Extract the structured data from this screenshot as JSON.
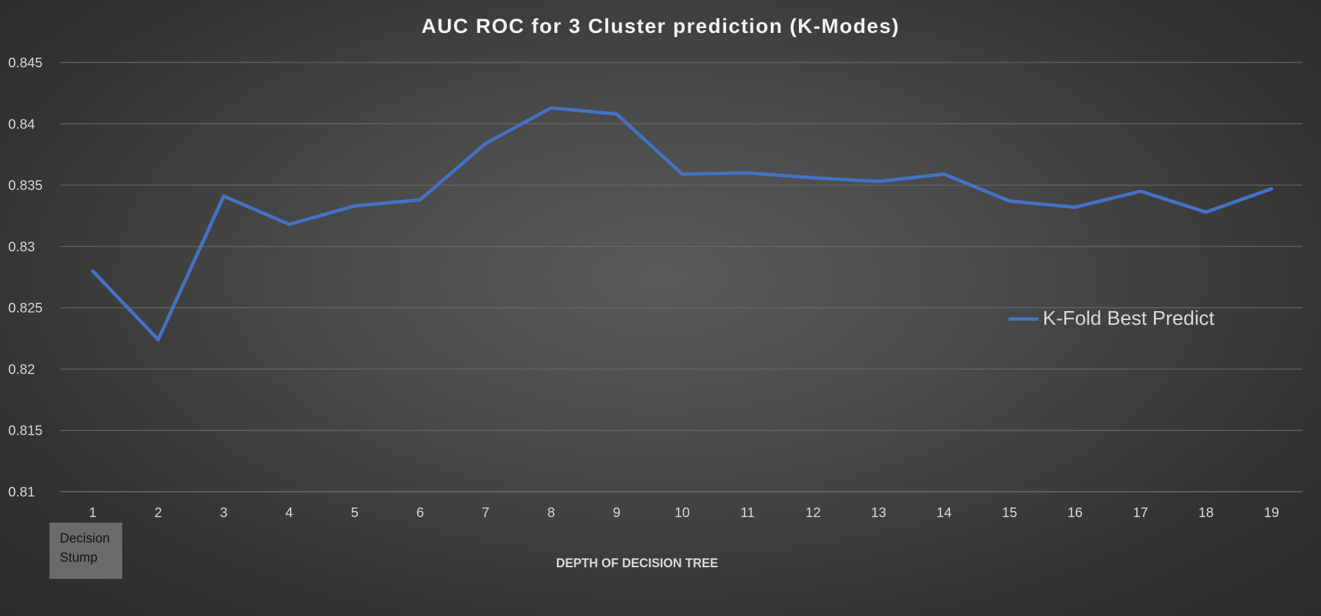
{
  "chart_data": {
    "type": "line",
    "title": "AUC ROC for 3 Cluster prediction (K-Modes)",
    "xlabel": "DEPTH OF DECISION TREE",
    "ylabel": "",
    "x": [
      "1",
      "2",
      "3",
      "4",
      "5",
      "6",
      "7",
      "8",
      "9",
      "10",
      "11",
      "12",
      "13",
      "14",
      "15",
      "16",
      "17",
      "18",
      "19"
    ],
    "ylim": [
      0.81,
      0.845
    ],
    "yticks": [
      "0.81",
      "0.815",
      "0.82",
      "0.825",
      "0.83",
      "0.835",
      "0.84",
      "0.845"
    ],
    "grid": true,
    "legend_position": "right",
    "series": [
      {
        "name": "K-Fold Best Predict",
        "color": "#4472C4",
        "values": [
          0.828,
          0.8224,
          0.8341,
          0.8318,
          0.8333,
          0.8338,
          0.8384,
          0.8413,
          0.8408,
          0.8359,
          0.836,
          0.8356,
          0.8353,
          0.8359,
          0.8337,
          0.8332,
          0.8345,
          0.8328,
          0.8347
        ]
      }
    ],
    "annotation": {
      "lines": [
        "Decision",
        "Stump"
      ]
    }
  }
}
